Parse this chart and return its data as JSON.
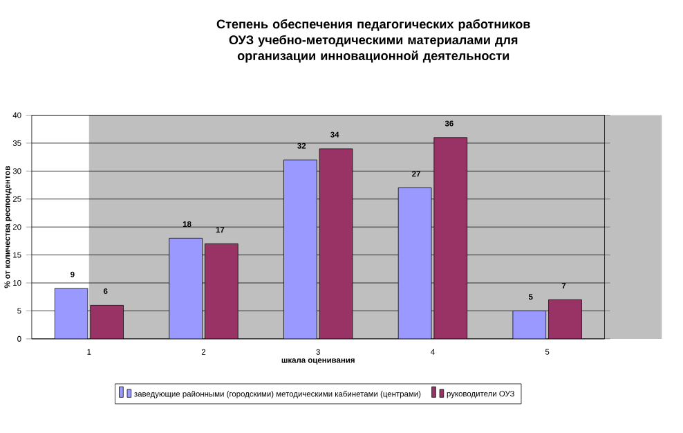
{
  "chart_data": {
    "type": "bar",
    "title": "Степень обеспечения педагогических работников ОУЗ учебно-методическими материалами для организации инновационной деятельности",
    "xlabel": "шкала оценивания",
    "ylabel": "% от количества респондентов",
    "categories": [
      "1",
      "2",
      "3",
      "4",
      "5"
    ],
    "series": [
      {
        "name": "заведующие районными (городскими) методическими кабинетами (центрами)",
        "color": "#9999ff",
        "values": [
          9,
          18,
          32,
          27,
          5
        ]
      },
      {
        "name": "руководители ОУЗ",
        "color": "#993366",
        "values": [
          6,
          17,
          34,
          36,
          7
        ]
      }
    ],
    "ylim": [
      0,
      40
    ],
    "yticks": [
      0,
      5,
      10,
      15,
      20,
      25,
      30,
      35,
      40
    ],
    "grid": "y",
    "legend": "bottom",
    "data_labels": true
  }
}
